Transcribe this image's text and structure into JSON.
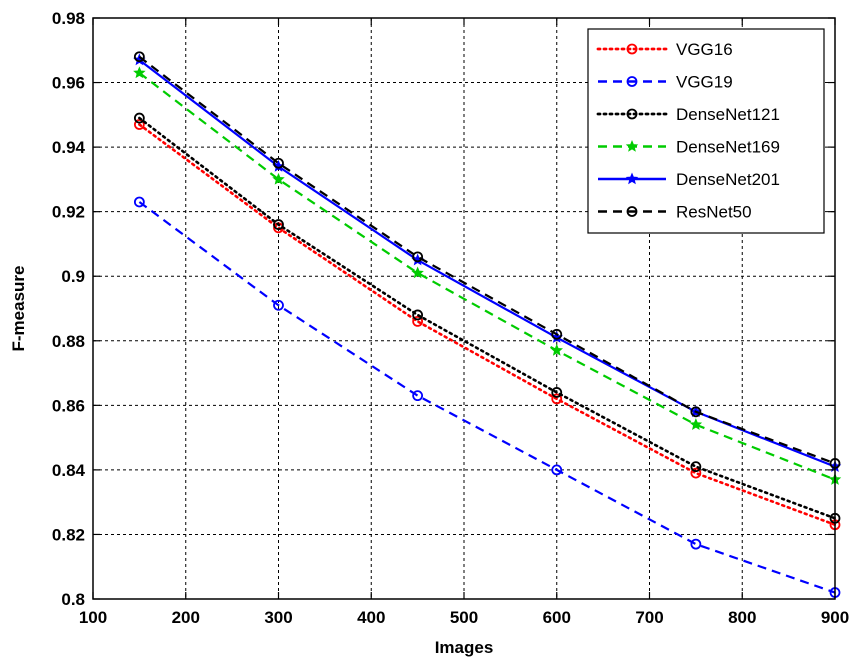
{
  "chart_data": {
    "type": "line",
    "title": "",
    "xlabel": "Images",
    "ylabel": "F-measure",
    "xlim": [
      100,
      900
    ],
    "ylim": [
      0.8,
      0.98
    ],
    "xticks": [
      100,
      200,
      300,
      400,
      500,
      600,
      700,
      800,
      900
    ],
    "yticks": [
      0.8,
      0.82,
      0.84,
      0.86,
      0.88,
      0.9,
      0.92,
      0.94,
      0.96,
      0.98
    ],
    "xtick_labels": [
      "100",
      "200",
      "300",
      "400",
      "500",
      "600",
      "700",
      "800",
      "900"
    ],
    "ytick_labels": [
      "0.8",
      "0.82",
      "0.84",
      "0.86",
      "0.88",
      "0.9",
      "0.92",
      "0.94",
      "0.96",
      "0.98"
    ],
    "grid": true,
    "legend_position": "top-right",
    "x": [
      150,
      300,
      450,
      600,
      750,
      900
    ],
    "series": [
      {
        "name": "VGG16",
        "values": [
          0.947,
          0.915,
          0.886,
          0.862,
          0.839,
          0.823
        ],
        "color": "#ff0000",
        "dash": "dotted",
        "marker": "circle"
      },
      {
        "name": "VGG19",
        "values": [
          0.923,
          0.891,
          0.863,
          0.84,
          0.817,
          0.802
        ],
        "color": "#0000ff",
        "dash": "dashed",
        "marker": "circle"
      },
      {
        "name": "DenseNet121",
        "values": [
          0.949,
          0.916,
          0.888,
          0.864,
          0.841,
          0.825
        ],
        "color": "#000000",
        "dash": "dotted",
        "marker": "circle"
      },
      {
        "name": "DenseNet169",
        "values": [
          0.963,
          0.93,
          0.901,
          0.877,
          0.854,
          0.837
        ],
        "color": "#00cc00",
        "dash": "dashed",
        "marker": "star"
      },
      {
        "name": "DenseNet201",
        "values": [
          0.967,
          0.934,
          0.905,
          0.881,
          0.858,
          0.841
        ],
        "color": "#0000ff",
        "dash": "solid",
        "marker": "star"
      },
      {
        "name": "ResNet50",
        "values": [
          0.968,
          0.935,
          0.906,
          0.882,
          0.858,
          0.842
        ],
        "color": "#000000",
        "dash": "dashed",
        "marker": "circle"
      }
    ]
  }
}
